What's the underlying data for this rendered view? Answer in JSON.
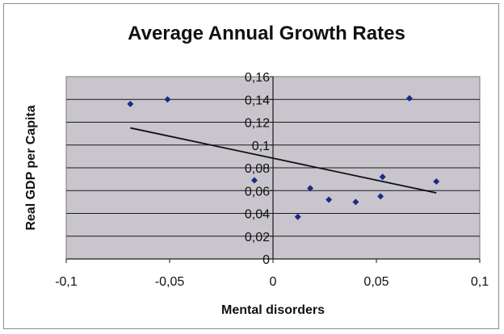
{
  "chart_data": {
    "type": "scatter",
    "title": "Average Annual Growth Rates",
    "xlabel": "Mental disorders",
    "ylabel": "Real GDP per Capita",
    "xlim": [
      -0.1,
      0.1
    ],
    "ylim": [
      0,
      0.16
    ],
    "x_ticks": [
      "-0,1",
      "-0,05",
      "0",
      "0,05",
      "0,1"
    ],
    "y_ticks": [
      "0",
      "0,02",
      "0,04",
      "0,06",
      "0,08",
      "0,1",
      "0,12",
      "0,14",
      "0,16"
    ],
    "grid": true,
    "plot_background": "#c9c5cd",
    "point_color": "#1c2a86",
    "points": [
      {
        "x": -0.069,
        "y": 0.136
      },
      {
        "x": -0.051,
        "y": 0.14
      },
      {
        "x": -0.009,
        "y": 0.069
      },
      {
        "x": 0.012,
        "y": 0.037
      },
      {
        "x": 0.018,
        "y": 0.062
      },
      {
        "x": 0.027,
        "y": 0.052
      },
      {
        "x": 0.04,
        "y": 0.05
      },
      {
        "x": 0.052,
        "y": 0.055
      },
      {
        "x": 0.053,
        "y": 0.072
      },
      {
        "x": 0.066,
        "y": 0.141
      },
      {
        "x": 0.079,
        "y": 0.068
      }
    ],
    "trendline": {
      "x": [
        -0.069,
        0.079
      ],
      "y": [
        0.115,
        0.058
      ]
    }
  }
}
